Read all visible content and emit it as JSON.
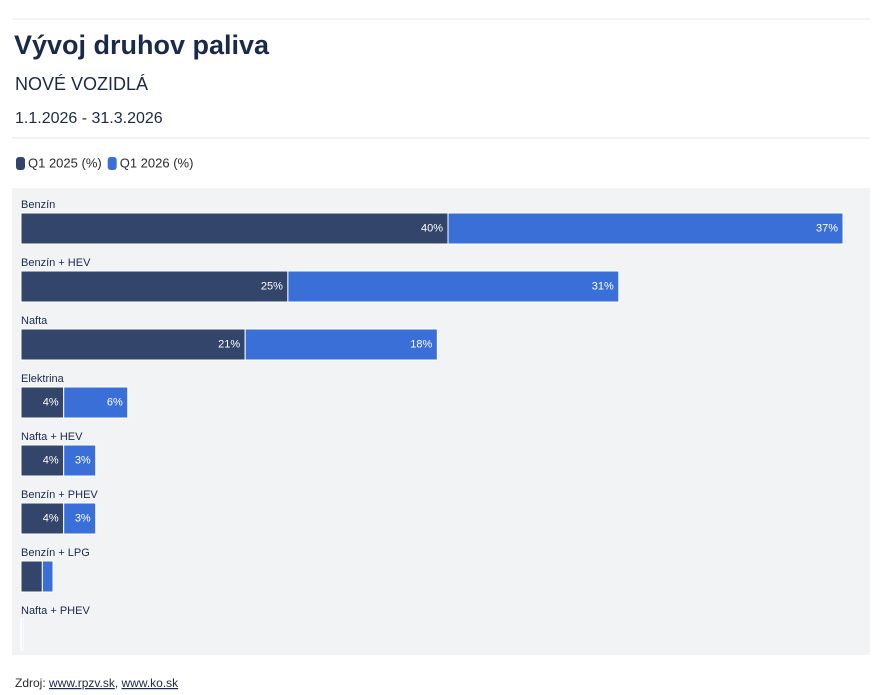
{
  "chart_data": {
    "type": "bar",
    "orientation": "horizontal",
    "stacked": true,
    "title": "Vývoj druhov paliva",
    "subtitle": "NOVÉ VOZIDLÁ",
    "date_range": "1.1.2026 - 31.3.2026",
    "categories": [
      "Benzín",
      "Benzín + HEV",
      "Nafta",
      "Elektrina",
      "Nafta + HEV",
      "Benzín + PHEV",
      "Benzín + LPG",
      "Nafta + PHEV"
    ],
    "series": [
      {
        "name": "Q1 2025 (%)",
        "color": "#34456b",
        "values": [
          40,
          25,
          21,
          4,
          4,
          4,
          2,
          0.1
        ],
        "value_labels": [
          "40%",
          "25%",
          "21%",
          "4%",
          "4%",
          "4%",
          null,
          null
        ]
      },
      {
        "name": "Q1 2026 (%)",
        "color": "#3a6fd8",
        "values": [
          37,
          31,
          18,
          6,
          3,
          3,
          1,
          0.1
        ],
        "value_labels": [
          "37%",
          "31%",
          "18%",
          "6%",
          "3%",
          "3%",
          null,
          null
        ]
      }
    ],
    "source_label": "Zdroj:",
    "source_links": [
      "www.rpzv.sk",
      "www.ko.sk"
    ]
  }
}
